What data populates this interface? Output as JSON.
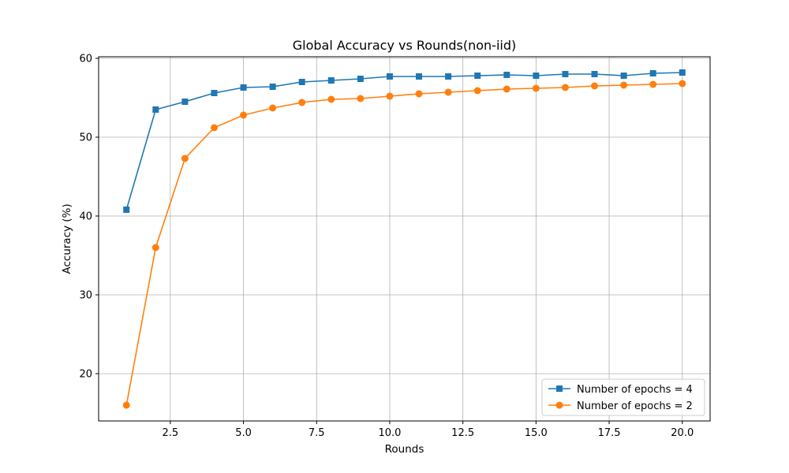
{
  "chart_data": {
    "type": "line",
    "title": "Global Accuracy vs Rounds(non-iid)",
    "xlabel": "Rounds",
    "ylabel": "Accuracy (%)",
    "xlim": [
      0.05,
      20.95
    ],
    "ylim": [
      14,
      60.2
    ],
    "xticks": [
      2.5,
      5.0,
      7.5,
      10.0,
      12.5,
      15.0,
      17.5,
      20.0
    ],
    "xtick_labels": [
      "2.5",
      "5.0",
      "7.5",
      "10.0",
      "12.5",
      "15.0",
      "17.5",
      "20.0"
    ],
    "yticks": [
      20,
      30,
      40,
      50,
      60
    ],
    "ytick_labels": [
      "20",
      "30",
      "40",
      "50",
      "60"
    ],
    "grid": true,
    "legend_position": "bottom-right",
    "x": [
      1,
      2,
      3,
      4,
      5,
      6,
      7,
      8,
      9,
      10,
      11,
      12,
      13,
      14,
      15,
      16,
      17,
      18,
      19,
      20
    ],
    "series": [
      {
        "name": "Number of epochs = 4",
        "color": "#1f77b4",
        "marker": "square",
        "values": [
          40.8,
          53.5,
          54.5,
          55.6,
          56.3,
          56.4,
          57.0,
          57.2,
          57.4,
          57.7,
          57.7,
          57.7,
          57.8,
          57.9,
          57.8,
          58.0,
          58.0,
          57.8,
          58.1,
          58.2
        ]
      },
      {
        "name": "Number of epochs = 2",
        "color": "#ff7f0e",
        "marker": "circle",
        "values": [
          16.0,
          36.0,
          47.3,
          51.2,
          52.8,
          53.7,
          54.4,
          54.8,
          54.9,
          55.2,
          55.5,
          55.7,
          55.9,
          56.1,
          56.2,
          56.3,
          56.5,
          56.6,
          56.7,
          56.8
        ]
      }
    ]
  }
}
